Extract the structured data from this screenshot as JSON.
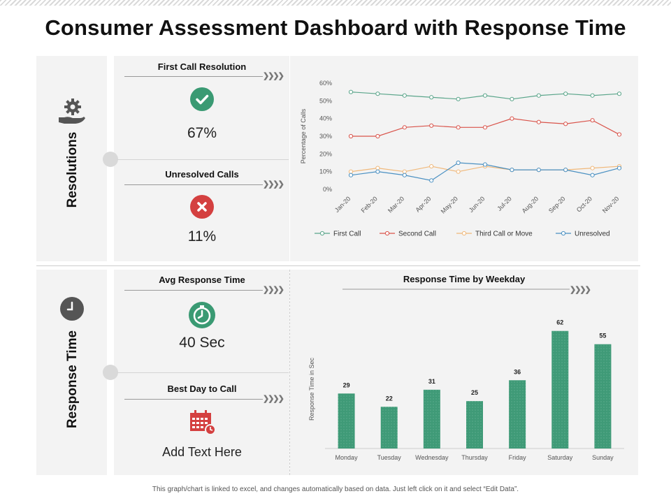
{
  "title": "Consumer Assessment Dashboard with Response Time",
  "footnote": "This graph/chart is linked to excel, and changes automatically based on data. Just left click on it and select “Edit Data”.",
  "sections": {
    "resolutions": "Resolutions",
    "response_time": "Response Time"
  },
  "cards": {
    "first_call_resolution": {
      "title": "First Call Resolution",
      "value": "67%"
    },
    "unresolved_calls": {
      "title": "Unresolved Calls",
      "value": "11%"
    },
    "avg_response_time": {
      "title": "Avg Response Time",
      "value": "40 Sec"
    },
    "best_day_to_call": {
      "title": "Best Day to Call",
      "value": "Add Text Here"
    }
  },
  "colors": {
    "green": "#3a9a73",
    "red": "#d44040",
    "first_call": "#5aa58a",
    "second_call": "#d9534a",
    "third_call": "#f0b87a",
    "unresolved": "#4a90c2",
    "bar": "#3f9a77"
  },
  "icons": {
    "resolutions": "gear-hand-icon",
    "response_time": "clock-icon",
    "first_call": "check-circle-icon",
    "unresolved": "x-circle-icon",
    "avg_response": "clock-icon",
    "best_day": "calendar-icon"
  },
  "chart_data": [
    {
      "type": "line",
      "title": "",
      "ylabel": "Percentage of Calls",
      "xlabel": "",
      "categories": [
        "Jan-20",
        "Feb-20",
        "Mar-20",
        "Apr-20",
        "May-20",
        "Jun-20",
        "Jul-20",
        "Aug-20",
        "Sep-20",
        "Oct-20",
        "Nov-20"
      ],
      "ylim": [
        0,
        60
      ],
      "yticks": [
        "0%",
        "10%",
        "20%",
        "30%",
        "40%",
        "50%",
        "60%"
      ],
      "legend_position": "bottom",
      "series": [
        {
          "name": "First Call",
          "values": [
            55,
            54,
            53,
            52,
            51,
            53,
            51,
            53,
            54,
            53,
            54
          ]
        },
        {
          "name": "Second Call",
          "values": [
            30,
            30,
            35,
            36,
            35,
            35,
            40,
            38,
            37,
            39,
            31
          ]
        },
        {
          "name": "Third Call or Move",
          "values": [
            10,
            12,
            10,
            13,
            10,
            13,
            11,
            11,
            11,
            12,
            13
          ]
        },
        {
          "name": "Unresolved",
          "values": [
            8,
            10,
            8,
            5,
            15,
            14,
            11,
            11,
            11,
            8,
            12
          ]
        }
      ]
    },
    {
      "type": "bar",
      "title": "Response Time by Weekday",
      "ylabel": "Response Time in Sec",
      "xlabel": "",
      "categories": [
        "Monday",
        "Tuesday",
        "Wednesday",
        "Thursday",
        "Friday",
        "Saturday",
        "Sunday"
      ],
      "values": [
        29,
        22,
        31,
        25,
        36,
        62,
        55
      ],
      "ylim": [
        0,
        70
      ]
    }
  ]
}
